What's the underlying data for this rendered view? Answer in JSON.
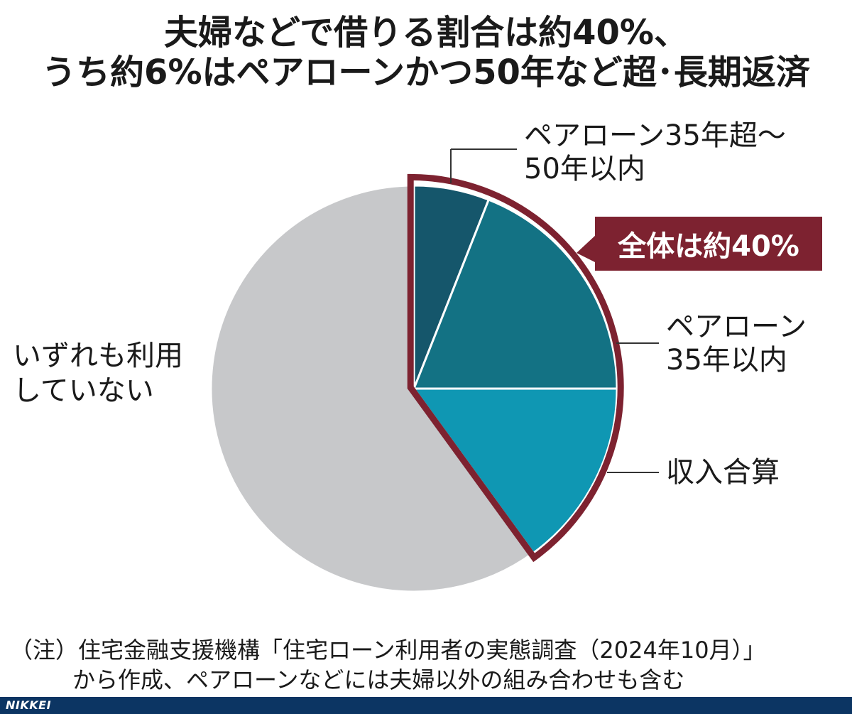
{
  "header": {
    "title_line1": "夫婦などで借りる割合は約40%、",
    "title_line2": "うち約6%はペアローンかつ50年など超･長期返済"
  },
  "chart_data": {
    "type": "pie",
    "start_angle_deg": 0,
    "direction": "clockwise",
    "slices": [
      {
        "label_line1": "ペアローン35年超～",
        "label_line2": "50年以内",
        "value": 6,
        "color": "#15566b"
      },
      {
        "label_line1": "ペアローン",
        "label_line2": "35年以内",
        "value": 19,
        "color": "#137284"
      },
      {
        "label_line1": "収入合算",
        "label_line2": "",
        "value": 15,
        "color": "#0f97b3"
      },
      {
        "label_line1": "いずれも利用",
        "label_line2": "していない",
        "value": 60,
        "color": "#c7c8ca"
      }
    ],
    "highlight": {
      "text": "全体は約40%",
      "color": "#7d2230",
      "slices": [
        0,
        1,
        2
      ]
    }
  },
  "notes": {
    "line1": "（注）住宅金融支援機構「住宅ローン利用者の実態調査（2024年10月）」",
    "line2": "から作成、ペアローンなどには夫婦以外の組み合わせも含む"
  },
  "footer": {
    "brand": "NIKKEI"
  }
}
